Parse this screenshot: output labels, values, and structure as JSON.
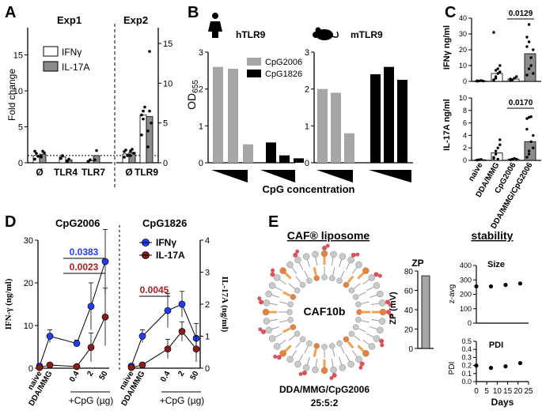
{
  "panels": {
    "A": "A",
    "B": "B",
    "C": "C",
    "D": "D",
    "E": "E"
  },
  "colors": {
    "ifng_fill": "#ffffff",
    "il17_fill": "#8c8c8c",
    "cpg2006": "#a6a6a6",
    "cpg1826": "#000000",
    "d_ifng": "#1f3fff",
    "d_il17": "#8b1a1a",
    "sig_blue": "#1f3fff",
    "sig_red": "#b01c1c",
    "lipid_head": "#c9c9c9",
    "lipid_tail": "#f5a04a",
    "cpg_red": "#d8545a"
  },
  "chart_data": [
    {
      "id": "A",
      "type": "bar",
      "titles": [
        "Exp1",
        "Exp2"
      ],
      "ylabel": "Fold change",
      "left_axis": {
        "ylim": [
          0,
          20
        ],
        "ticks": [
          "0",
          "5",
          "10",
          "15"
        ]
      },
      "right_axis": {
        "ylim": [
          0,
          15
        ],
        "ticks": [
          "0",
          "5",
          "10",
          "15"
        ]
      },
      "categories": [
        "Ø",
        "TLR4",
        "TLR7",
        "Ø",
        "TLR9"
      ],
      "legend": [
        "IFNγ",
        "IL-17A"
      ],
      "series": [
        {
          "name": "IFNγ",
          "values": [
            1.0,
            0.8,
            0.3,
            1.1,
            6.0
          ]
        },
        {
          "name": "IL-17A",
          "values": [
            1.2,
            0.4,
            1.0,
            1.3,
            5.8
          ]
        }
      ],
      "points": {
        "IFNγ": [
          [
            0.5,
            1.3,
            0.9,
            1.6
          ],
          [
            0.6,
            1.0
          ],
          [
            0.2,
            0.4
          ],
          [
            0.7,
            1.6,
            0.9,
            1.4
          ],
          [
            3.5,
            6.5,
            7.0,
            6.0,
            5.5
          ]
        ],
        "IL-17A": [
          [
            0.8,
            1.6,
            1.4,
            0.9
          ],
          [
            0.2,
            0.5
          ],
          [
            0.4,
            1.7
          ],
          [
            0.9,
            1.7,
            1.2,
            1.5
          ],
          [
            2.0,
            14.0,
            5.0,
            4.0,
            6.5
          ]
        ]
      },
      "reference_line": 1
    },
    {
      "id": "B",
      "type": "bar",
      "panels": [
        {
          "title": "hTLR9",
          "series": [
            {
              "name": "CpG2006",
              "values": [
                2.6,
                2.55,
                0.5
              ]
            },
            {
              "name": "CpG1826",
              "values": [
                0.55,
                0.2,
                0.12
              ]
            }
          ]
        },
        {
          "title": "mTLR9",
          "series": [
            {
              "name": "CpG2006",
              "values": [
                2.0,
                1.9,
                0.8
              ]
            },
            {
              "name": "CpG1826",
              "values": [
                2.4,
                2.6,
                2.25
              ]
            }
          ]
        }
      ],
      "ylabel": "OD655",
      "xlabel": "CpG concentration",
      "ylim": [
        0,
        3
      ],
      "yticks": [
        "0",
        "1",
        "2",
        "3"
      ],
      "legend": [
        "CpG2006",
        "CpG1826"
      ]
    },
    {
      "id": "C",
      "type": "bar",
      "categories": [
        "naive",
        "DDA/MMG",
        "CpG2006",
        "DDA/MMG/CpG2006"
      ],
      "top": {
        "ylabel": "IFNγ ng/ml",
        "ylim": [
          0,
          40
        ],
        "yticks": [
          "0",
          "10",
          "20",
          "30",
          "40"
        ],
        "values": [
          0.3,
          5.0,
          1.5,
          17.5
        ],
        "pvalue": "0.0129",
        "points": [
          [
            0.1,
            0.3,
            0.5,
            0.2,
            0.4
          ],
          [
            0.5,
            3,
            8,
            10,
            31,
            2,
            5,
            6,
            1,
            7
          ],
          [
            0.5,
            1,
            2,
            3,
            1.5
          ],
          [
            4,
            8,
            15,
            20,
            22,
            36,
            10,
            5,
            28,
            25
          ]
        ]
      },
      "bottom": {
        "ylabel": "IL-17A ng/ml",
        "ylim": [
          0,
          10
        ],
        "yticks": [
          "0",
          "2",
          "4",
          "6",
          "8",
          "10"
        ],
        "values": [
          0.1,
          1.2,
          0.2,
          3.0
        ],
        "pvalue": "0.0170",
        "points": [
          [
            0.05,
            0.1,
            0.15
          ],
          [
            0.3,
            1.0,
            2.0,
            3.3,
            0.5,
            1.5,
            0.2,
            2.5
          ],
          [
            0.1,
            0.2,
            0.3,
            0.2
          ],
          [
            0.5,
            1,
            3,
            4,
            6.7,
            6.9,
            7,
            2,
            5,
            1.5
          ]
        ]
      }
    },
    {
      "id": "D",
      "type": "line",
      "panels": [
        {
          "title": "CpG2006",
          "ifng": [
            0.5,
            7.5,
            5.8,
            14.5,
            25.0
          ],
          "ifng_err": [
            0.3,
            1.5,
            0.8,
            5.5,
            7.5
          ],
          "il17": [
            0.02,
            0.1,
            0.05,
            0.65,
            1.6
          ],
          "il17_err": [
            0.02,
            0.05,
            0.05,
            0.45,
            0.9
          ],
          "sig": [
            {
              "text": "0.0383",
              "color": "blue"
            },
            {
              "text": "0.0023",
              "color": "red"
            }
          ]
        },
        {
          "title": "CpG1826",
          "ifng": [
            0.5,
            7.5,
            13.5,
            15.0,
            7.0
          ],
          "ifng_err": [
            0.3,
            1.5,
            4.0,
            3.0,
            3.5
          ],
          "il17": [
            0.02,
            0.1,
            0.6,
            1.15,
            0.6
          ],
          "il17_err": [
            0.02,
            0.05,
            0.3,
            0.3,
            0.4
          ],
          "sig": [
            {
              "text": "0.0045",
              "color": "red"
            }
          ]
        }
      ],
      "categories": [
        "naive",
        "DDA/MMG",
        "0.4",
        "2",
        "50"
      ],
      "xlabel": "+CpG (µg)",
      "ylabel_left": "IFN-γ (ng/ml)",
      "ylabel_right": "IL-17A (ng/ml)",
      "left_axis": {
        "ylim": [
          0,
          30
        ],
        "ticks": [
          "0",
          "10",
          "20",
          "30"
        ]
      },
      "right_axis": {
        "ylim": [
          0,
          4
        ],
        "ticks": [
          "0",
          "1",
          "2",
          "3",
          "4"
        ]
      },
      "legend": [
        "IFNγ",
        "IL-17A"
      ]
    },
    {
      "id": "E-zp",
      "type": "bar",
      "title": "ZP",
      "ylabel": "ZP (mV)",
      "ylim": [
        0,
        80
      ],
      "yticks": [
        "0",
        "20",
        "40",
        "60",
        "80"
      ],
      "values": [
        75
      ]
    },
    {
      "id": "E-stability",
      "type": "scatter",
      "title": "stability",
      "xlabel": "Days",
      "xlim": [
        0,
        25
      ],
      "xticks": [
        "0",
        "5",
        "10",
        "15",
        "20",
        "25"
      ],
      "subplots": [
        {
          "title": "Size",
          "ylabel": "z-avg",
          "ylim": [
            0,
            400
          ],
          "yticks": [
            "0",
            "100",
            "200",
            "300",
            "400"
          ],
          "x": [
            0,
            7,
            14,
            21
          ],
          "y": [
            255,
            255,
            265,
            275
          ]
        },
        {
          "title": "PDI",
          "ylabel": "PDI",
          "ylim": [
            0,
            0.5
          ],
          "yticks": [
            "0.0",
            "0.1",
            "0.2",
            "0.3",
            "0.4",
            "0.5"
          ],
          "x": [
            0,
            7,
            14,
            21
          ],
          "y": [
            0.2,
            0.17,
            0.19,
            0.23
          ]
        }
      ]
    }
  ],
  "liposome": {
    "title": "CAF® liposome",
    "name": "CAF10b",
    "composition": "DDA/MMG/CpG2006",
    "ratio": "25:5:2"
  }
}
